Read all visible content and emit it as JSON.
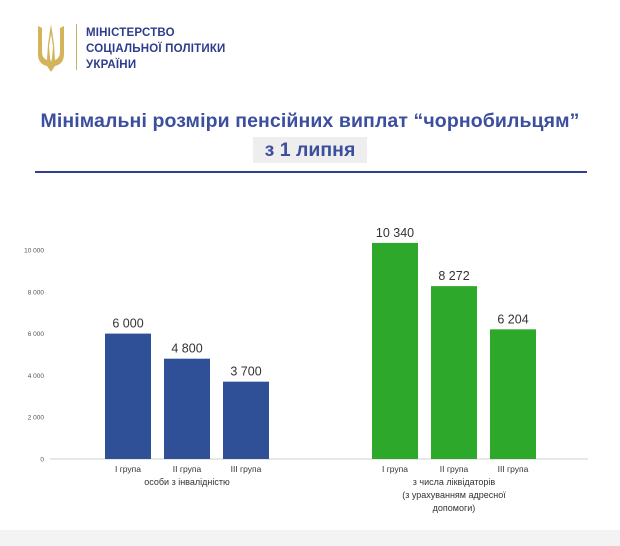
{
  "ministry": {
    "line1": "МІНІСТЕРСТВО",
    "line2": "СОЦІАЛЬНОЇ ПОЛІТИКИ",
    "line3": "УКРАЇНИ",
    "logo_icon": "trident-icon",
    "logo_color": "#d4b45a",
    "text_color": "#2d3c8c"
  },
  "title": "Мінімальні розміри пенсійних виплат “чорнобильцям”",
  "subtitle": "з 1 липня",
  "chart_data": {
    "type": "bar",
    "ylim": [
      0,
      10000
    ],
    "yticks": [
      0,
      2000,
      4000,
      6000,
      8000,
      10000
    ],
    "ytick_labels": [
      "0",
      "2 000",
      "4 000",
      "6 000",
      "8 000",
      "10 000"
    ],
    "grid": false,
    "groups": [
      {
        "label_lines": [
          "особи з інвалідністю"
        ],
        "color": "#2f4f96",
        "categories": [
          "І група",
          "ІІ група",
          "ІІІ група"
        ],
        "values": [
          6000,
          4800,
          3700
        ],
        "value_labels": [
          "6 000",
          "4 800",
          "3 700"
        ]
      },
      {
        "label_lines": [
          "з числа ліквідаторів",
          "(з урахуванням адресної",
          "допомоги)"
        ],
        "color": "#2ea82a",
        "categories": [
          "І група",
          "ІІ група",
          "ІІІ група"
        ],
        "values": [
          10340,
          8272,
          6204
        ],
        "value_labels": [
          "10 340",
          "8 272",
          "6 204"
        ]
      }
    ]
  }
}
